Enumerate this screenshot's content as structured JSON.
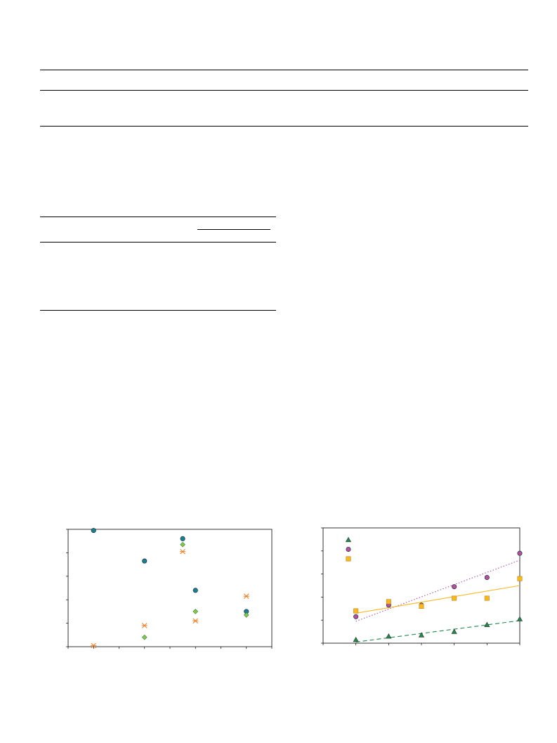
{
  "colors": {
    "teal": "#17808f",
    "orange": "#f07b1f",
    "lightgreen": "#7ccb4e",
    "darkgreen": "#1e8a4a",
    "magenta": "#b4519e",
    "gold": "#f9b820"
  },
  "chart_data": [
    {
      "type": "scatter",
      "title": "",
      "xlabel": "",
      "ylabel": "",
      "xlim": [
        0,
        8
      ],
      "ylim": [
        0,
        5
      ],
      "grid": false,
      "series": [
        {
          "marker": "circle",
          "color": "#17808f",
          "x": [
            1,
            3,
            4.5,
            5,
            7
          ],
          "y": [
            4.95,
            3.65,
            4.6,
            2.4,
            1.5
          ]
        },
        {
          "marker": "star",
          "color": "#f07b1f",
          "x": [
            1,
            3,
            4.5,
            5,
            7
          ],
          "y": [
            0.05,
            0.9,
            4.05,
            1.1,
            2.15
          ]
        },
        {
          "marker": "diamond",
          "color": "#7ccb4e",
          "x": [
            3,
            4.5,
            5,
            7
          ],
          "y": [
            0.4,
            4.35,
            1.5,
            1.35
          ]
        }
      ]
    },
    {
      "type": "scatter",
      "title": "",
      "xlabel": "",
      "ylabel": "",
      "xlim": [
        0,
        6
      ],
      "ylim": [
        0,
        5
      ],
      "grid": false,
      "series": [
        {
          "marker": "triangle",
          "color": "#1e8a4a",
          "x": [
            1,
            2,
            3,
            4,
            5,
            6
          ],
          "y": [
            0.15,
            0.3,
            0.35,
            0.5,
            0.8,
            1.05
          ],
          "fit": [
            [
              1,
              0.05
            ],
            [
              6,
              0.98
            ]
          ],
          "fit_style": "dashed"
        },
        {
          "marker": "circle",
          "color": "#b4519e",
          "x": [
            1,
            2,
            3,
            4,
            5,
            6
          ],
          "y": [
            1.15,
            1.65,
            1.65,
            2.45,
            2.85,
            3.9
          ],
          "fit": [
            [
              1,
              0.95
            ],
            [
              6,
              3.6
            ]
          ],
          "fit_style": "dotted"
        },
        {
          "marker": "square",
          "color": "#f9b820",
          "x": [
            1,
            2,
            3,
            4,
            5,
            6
          ],
          "y": [
            1.4,
            1.8,
            1.6,
            1.95,
            1.95,
            2.8
          ],
          "fit": [
            [
              1,
              1.3
            ],
            [
              6,
              2.5
            ]
          ],
          "fit_style": "solid"
        }
      ],
      "legend_markers": [
        {
          "marker": "triangle",
          "color": "#1e8a4a"
        },
        {
          "marker": "circle",
          "color": "#b4519e"
        },
        {
          "marker": "square",
          "color": "#f9b820"
        }
      ]
    }
  ]
}
